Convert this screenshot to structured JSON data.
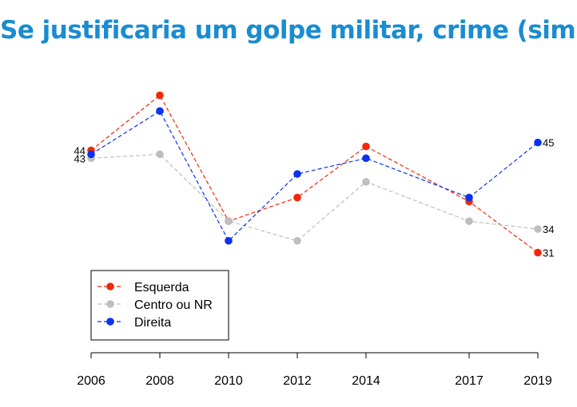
{
  "chart_data": {
    "type": "line",
    "title": "Se justificaria um golpe militar, crime (sim)",
    "xlabel": "",
    "ylabel": "",
    "x": [
      2006,
      2008,
      2010,
      2012,
      2014,
      2017,
      2019
    ],
    "ylim": [
      20,
      55
    ],
    "grid": false,
    "legend_position": "bottom-left",
    "series": [
      {
        "name": "Esquerda",
        "color": "#f2280a",
        "values": [
          44,
          51,
          35,
          38,
          44.5,
          37.5,
          31
        ],
        "start_label": "44",
        "end_label": "31"
      },
      {
        "name": "Centro ou NR",
        "color": "#bebebe",
        "values": [
          43,
          43.5,
          35,
          32.5,
          40,
          35,
          34
        ],
        "start_label": "43",
        "end_label": "34"
      },
      {
        "name": "Direita",
        "color": "#0a32f0",
        "values": [
          43.5,
          49,
          32.5,
          41,
          43,
          38,
          45
        ],
        "start_label": "",
        "end_label": "45"
      }
    ]
  }
}
